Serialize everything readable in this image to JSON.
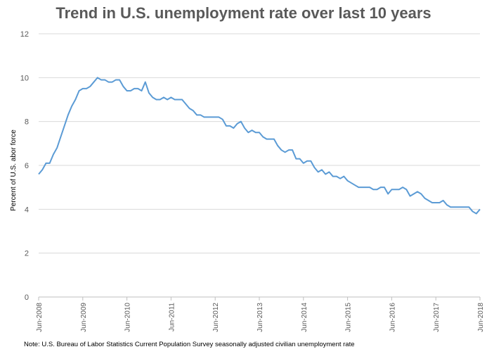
{
  "chart_data": {
    "type": "line",
    "title": "Trend in U.S. unemployment rate over last 10 years",
    "xlabel": "",
    "ylabel": "Percent of U.S. abor force",
    "ylim": [
      0,
      12
    ],
    "yticks": [
      "0",
      "2",
      "4",
      "6",
      "8",
      "10",
      "12"
    ],
    "xticks": [
      "Jun-2008",
      "Jun-2009",
      "Jun-2010",
      "Jun-2011",
      "Jun-2012",
      "Jun-2013",
      "Jun-2014",
      "Jun-2015",
      "Jun-2016",
      "Jun-2017",
      "Jun-2018"
    ],
    "grid": true,
    "legend": "none",
    "line_color": "#5B9BD5",
    "series": [
      {
        "name": "",
        "values": [
          5.6,
          5.8,
          6.1,
          6.1,
          6.5,
          6.8,
          7.3,
          7.8,
          8.3,
          8.7,
          9.0,
          9.4,
          9.5,
          9.5,
          9.6,
          9.8,
          10.0,
          9.9,
          9.9,
          9.8,
          9.8,
          9.9,
          9.9,
          9.6,
          9.4,
          9.4,
          9.5,
          9.5,
          9.4,
          9.8,
          9.3,
          9.1,
          9.0,
          9.0,
          9.1,
          9.0,
          9.1,
          9.0,
          9.0,
          9.0,
          8.8,
          8.6,
          8.5,
          8.3,
          8.3,
          8.2,
          8.2,
          8.2,
          8.2,
          8.2,
          8.1,
          7.8,
          7.8,
          7.7,
          7.9,
          8.0,
          7.7,
          7.5,
          7.6,
          7.5,
          7.5,
          7.3,
          7.2,
          7.2,
          7.2,
          6.9,
          6.7,
          6.6,
          6.7,
          6.7,
          6.3,
          6.3,
          6.1,
          6.2,
          6.2,
          5.9,
          5.7,
          5.8,
          5.6,
          5.7,
          5.5,
          5.5,
          5.4,
          5.5,
          5.3,
          5.2,
          5.1,
          5.0,
          5.0,
          5.0,
          5.0,
          4.9,
          4.9,
          5.0,
          5.0,
          4.7,
          4.9,
          4.9,
          4.9,
          5.0,
          4.9,
          4.6,
          4.7,
          4.8,
          4.7,
          4.5,
          4.4,
          4.3,
          4.3,
          4.3,
          4.4,
          4.2,
          4.1,
          4.1,
          4.1,
          4.1,
          4.1,
          4.1,
          3.9,
          3.8,
          4.0
        ]
      }
    ]
  },
  "note": "Note: U.S. Bureau of Labor Statistics Current Population Survey seasonally adjusted civilian unemployment rate"
}
